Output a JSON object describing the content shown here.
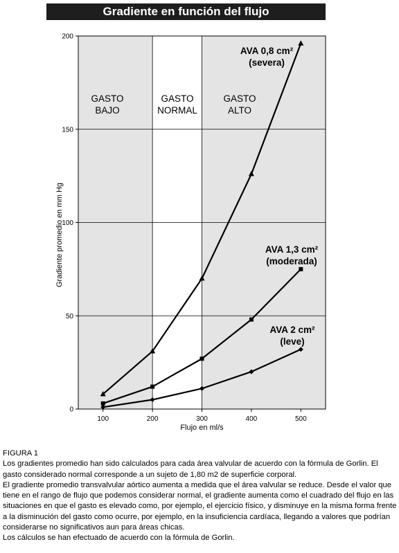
{
  "chart_data": {
    "type": "line",
    "title": "Gradiente en función del flujo",
    "xlabel": "Flujo en ml/s",
    "ylabel": "Gradiente promedio en mm Hg",
    "xlim": [
      50,
      550
    ],
    "ylim": [
      0,
      200
    ],
    "x_ticks": [
      100,
      200,
      300,
      400,
      500
    ],
    "y_ticks": [
      0,
      50,
      100,
      150,
      200
    ],
    "grid": true,
    "regions": [
      {
        "label_lines": [
          "GASTO",
          "BAJO"
        ],
        "x_range": [
          50,
          200
        ],
        "shaded": true
      },
      {
        "label_lines": [
          "GASTO",
          "NORMAL"
        ],
        "x_range": [
          200,
          300
        ],
        "shaded": false
      },
      {
        "label_lines": [
          "GASTO",
          "ALTO"
        ],
        "x_range": [
          300,
          550
        ],
        "shaded": true
      }
    ],
    "series": [
      {
        "name": "AVA 0,8 cm² (severa)",
        "label_lines": [
          "AVA 0,8 cm²",
          "(severa)"
        ],
        "marker": "triangle",
        "x": [
          100,
          200,
          300,
          400,
          500
        ],
        "y": [
          8,
          31,
          70,
          126,
          196
        ]
      },
      {
        "name": "AVA 1,3 cm² (moderada)",
        "label_lines": [
          "AVA 1,3 cm²",
          "(moderada)"
        ],
        "marker": "square",
        "x": [
          100,
          200,
          300,
          400,
          500
        ],
        "y": [
          3,
          12,
          27,
          48,
          75
        ]
      },
      {
        "name": "AVA 2 cm² (leve)",
        "label_lines": [
          "AVA 2 cm²",
          "(leve)"
        ],
        "marker": "diamond",
        "x": [
          100,
          200,
          300,
          400,
          500
        ],
        "y": [
          1,
          5,
          11,
          20,
          32
        ]
      }
    ]
  },
  "caption": {
    "heading": "FIGURA 1",
    "paragraphs": [
      "Los gradientes promedio han sido calculados para cada área valvular de acuerdo con la fórmula de Gorlin. El gasto considerado normal corresponde a un sujeto de 1,80 m2 de superficie corporal.",
      "El gradiente promedio transvalvular aórtico aumenta a medida que el área valvular se reduce. Desde el valor que tiene en el rango de flujo que podemos considerar normal, el gradiente aumenta como el cuadrado del flujo en las situaciones en que el gasto es elevado como, por ejemplo, el ejercicio físico, y disminuye en la misma forma frente a la disminución del gasto como ocurre, por ejemplo, en la insuficiencia cardíaca, llegando a valores que podrían considerarse no significativos aun para áreas chicas.",
      "Los cálculos se han efectuado de acuerdo con la fórmula de Gorlin."
    ]
  }
}
